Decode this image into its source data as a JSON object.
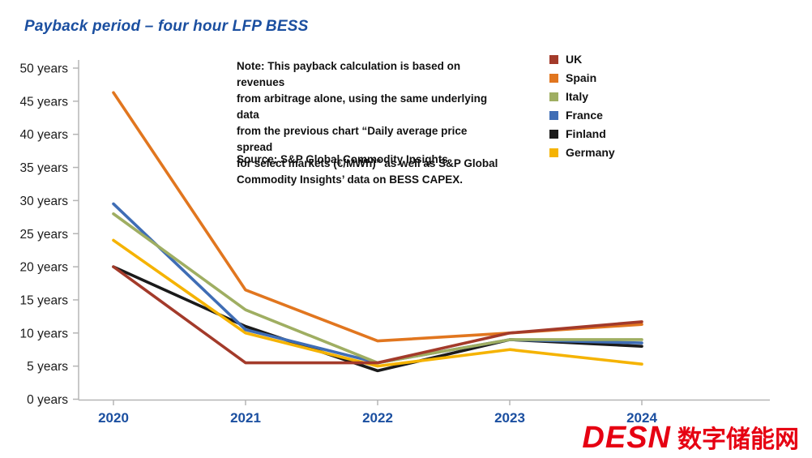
{
  "title": "Payback period – four hour LFP BESS",
  "note": "Note: This payback calculation is based on revenues\nfrom arbitrage alone, using the same underlying data\nfrom the previous chart “Daily average price spread\nfor select markets (€/MWh)” as well as S&P Global\nCommodity Insights’ data on BESS CAPEX.",
  "source": "Source: S&P Global Commodity Insights",
  "logo": {
    "text": "DESN",
    "cjk": "数字储能网",
    "color": "#e60012"
  },
  "chart_data": {
    "type": "line",
    "title": "Payback period – four hour LFP BESS",
    "xlabel": "",
    "ylabel": "years",
    "categories": [
      "2020",
      "2021",
      "2022",
      "2023",
      "2024"
    ],
    "series": [
      {
        "name": "UK",
        "color": "#a33a2a",
        "values": [
          20.0,
          5.5,
          5.5,
          10.0,
          11.7
        ]
      },
      {
        "name": "Spain",
        "color": "#e1761f",
        "values": [
          46.3,
          16.5,
          8.8,
          10.0,
          11.3
        ]
      },
      {
        "name": "Italy",
        "color": "#9fae62",
        "values": [
          28.0,
          13.5,
          5.5,
          9.0,
          9.0
        ]
      },
      {
        "name": "France",
        "color": "#3f6db5",
        "values": [
          29.5,
          10.5,
          5.5,
          9.0,
          8.5
        ]
      },
      {
        "name": "Finland",
        "color": "#1a1a1a",
        "values": [
          20.0,
          11.0,
          4.3,
          9.0,
          8.0
        ]
      },
      {
        "name": "Germany",
        "color": "#f5b301",
        "values": [
          24.0,
          10.0,
          5.0,
          7.5,
          5.3
        ]
      }
    ],
    "ylim": [
      0,
      50
    ],
    "y_tick_step": 5,
    "y_tick_labels": [
      "0 years",
      "5 years",
      "10 years",
      "15 years",
      "20 years",
      "25 years",
      "30 years",
      "35 years",
      "40 years",
      "45 years",
      "50 years"
    ],
    "grid": false,
    "legend_position": "top-right"
  }
}
